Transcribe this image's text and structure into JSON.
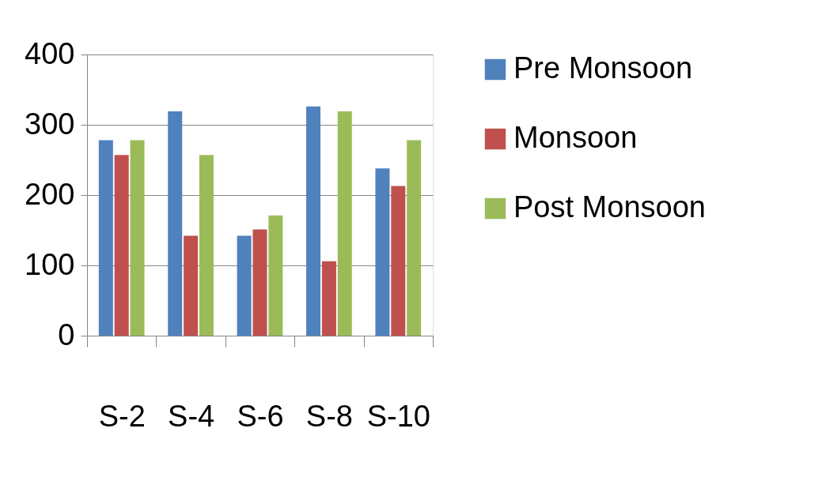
{
  "chart_data": {
    "type": "bar",
    "categories": [
      "S-2",
      "S-4",
      "S-6",
      "S-8",
      "S-10"
    ],
    "series": [
      {
        "name": "Pre Monsoon",
        "color": "#4f81bd",
        "values": [
          278,
          319,
          142,
          326,
          238
        ]
      },
      {
        "name": "Monsoon",
        "color": "#c0504d",
        "values": [
          257,
          142,
          151,
          106,
          213
        ]
      },
      {
        "name": "Post Monsoon",
        "color": "#9bbb59",
        "values": [
          278,
          257,
          171,
          319,
          278
        ]
      }
    ],
    "ylim": [
      0,
      400
    ],
    "yticks": [
      0,
      100,
      200,
      300,
      400
    ],
    "grid": "y",
    "legend": "right"
  }
}
